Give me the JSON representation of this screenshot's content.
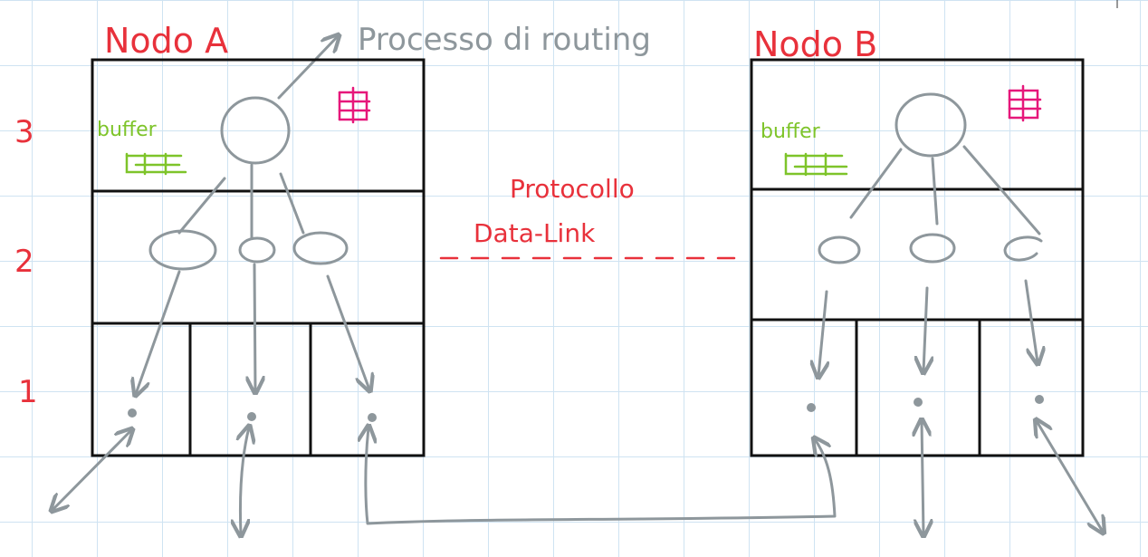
{
  "node_a_label": "Nodo A",
  "node_b_label": "Nodo B",
  "routing_label": "Processo di routing",
  "protocol_line1": "Protocollo",
  "protocol_line2": "Data-Link",
  "buffer_label": "buffer",
  "layers": [
    "3",
    "2",
    "1"
  ],
  "colors": {
    "red": "#e8313b",
    "gray": "#8e979c",
    "green": "#7ec42a",
    "magenta": "#e6177a",
    "grid": "#cfe3f2"
  }
}
